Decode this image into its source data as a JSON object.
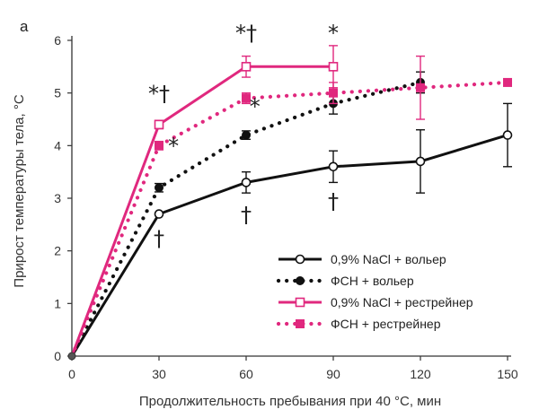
{
  "chart_data": {
    "type": "line",
    "panel_label": "а",
    "xlabel": "Продолжительность пребывания при 40 °С, мин",
    "ylabel": "Прирост температуры тела, °С",
    "xlim": [
      0,
      150
    ],
    "ylim": [
      0,
      6
    ],
    "xticks": [
      0,
      30,
      60,
      90,
      120,
      150
    ],
    "yticks": [
      0,
      1,
      2,
      3,
      4,
      5,
      6
    ],
    "legend_position": "bottom-right",
    "series": [
      {
        "name": "0,9% NaCl + вольер",
        "color": "#111111",
        "line_style": "solid",
        "marker": "circle-open",
        "x": [
          0,
          30,
          60,
          90,
          120,
          150
        ],
        "y": [
          0,
          2.7,
          3.3,
          3.6,
          3.7,
          4.2
        ],
        "err": [
          0,
          0.05,
          0.2,
          0.3,
          0.6,
          0.6
        ]
      },
      {
        "name": "ФСН + вольер",
        "color": "#111111",
        "line_style": "dotted",
        "marker": "circle-filled",
        "x": [
          0,
          30,
          60,
          90,
          120
        ],
        "y": [
          0,
          3.2,
          4.2,
          4.8,
          5.2
        ],
        "err": [
          0,
          0.08,
          0.08,
          0.2,
          0.2
        ]
      },
      {
        "name": "0,9% NaCl + рестрейнер",
        "color": "#e0287e",
        "line_style": "solid",
        "marker": "square-open",
        "x": [
          0,
          30,
          60,
          90
        ],
        "y": [
          0,
          4.4,
          5.5,
          5.5
        ],
        "err": [
          0,
          0.08,
          0.2,
          0.4
        ]
      },
      {
        "name": "ФСН + рестрейнер",
        "color": "#e0287e",
        "line_style": "dotted",
        "marker": "square-filled",
        "x": [
          0,
          30,
          60,
          90,
          120,
          150
        ],
        "y": [
          0,
          4.0,
          4.9,
          5.0,
          5.1,
          5.2
        ],
        "err": [
          0,
          0.08,
          0.1,
          0.2,
          0.6,
          0.05
        ]
      }
    ],
    "annotations": [
      {
        "text": "*†",
        "x": 30,
        "y": 4.85
      },
      {
        "text": "*",
        "x": 35,
        "y": 3.85
      },
      {
        "text": "†",
        "x": 30,
        "y": 2.1
      },
      {
        "text": "*†",
        "x": 60,
        "y": 6.0
      },
      {
        "text": "*",
        "x": 63,
        "y": 4.6
      },
      {
        "text": "†",
        "x": 60,
        "y": 2.55
      },
      {
        "text": "*",
        "x": 90,
        "y": 6.0
      },
      {
        "text": "†",
        "x": 90,
        "y": 2.8
      }
    ]
  }
}
